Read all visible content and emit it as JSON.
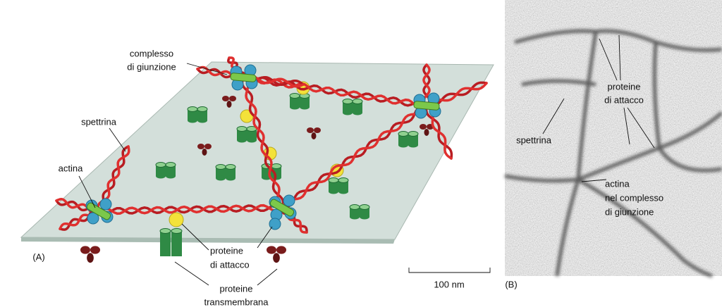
{
  "panel_a": {
    "label": "(A)",
    "junctional_complex": [
      "complesso",
      "di giunzione"
    ],
    "spectrin": "spettrina",
    "actin": "actina",
    "attachment_proteins": [
      "proteine",
      "di attacco"
    ],
    "transmembrane_proteins": [
      "proteine",
      "transmembrana"
    ],
    "scale_bar": "100 nm"
  },
  "panel_b": {
    "label": "(B)",
    "attachment_proteins": [
      "proteine",
      "di attacco"
    ],
    "spectrin": "spettrina",
    "actin_junction": [
      "actina",
      "nel complesso",
      "di giunzione"
    ]
  }
}
